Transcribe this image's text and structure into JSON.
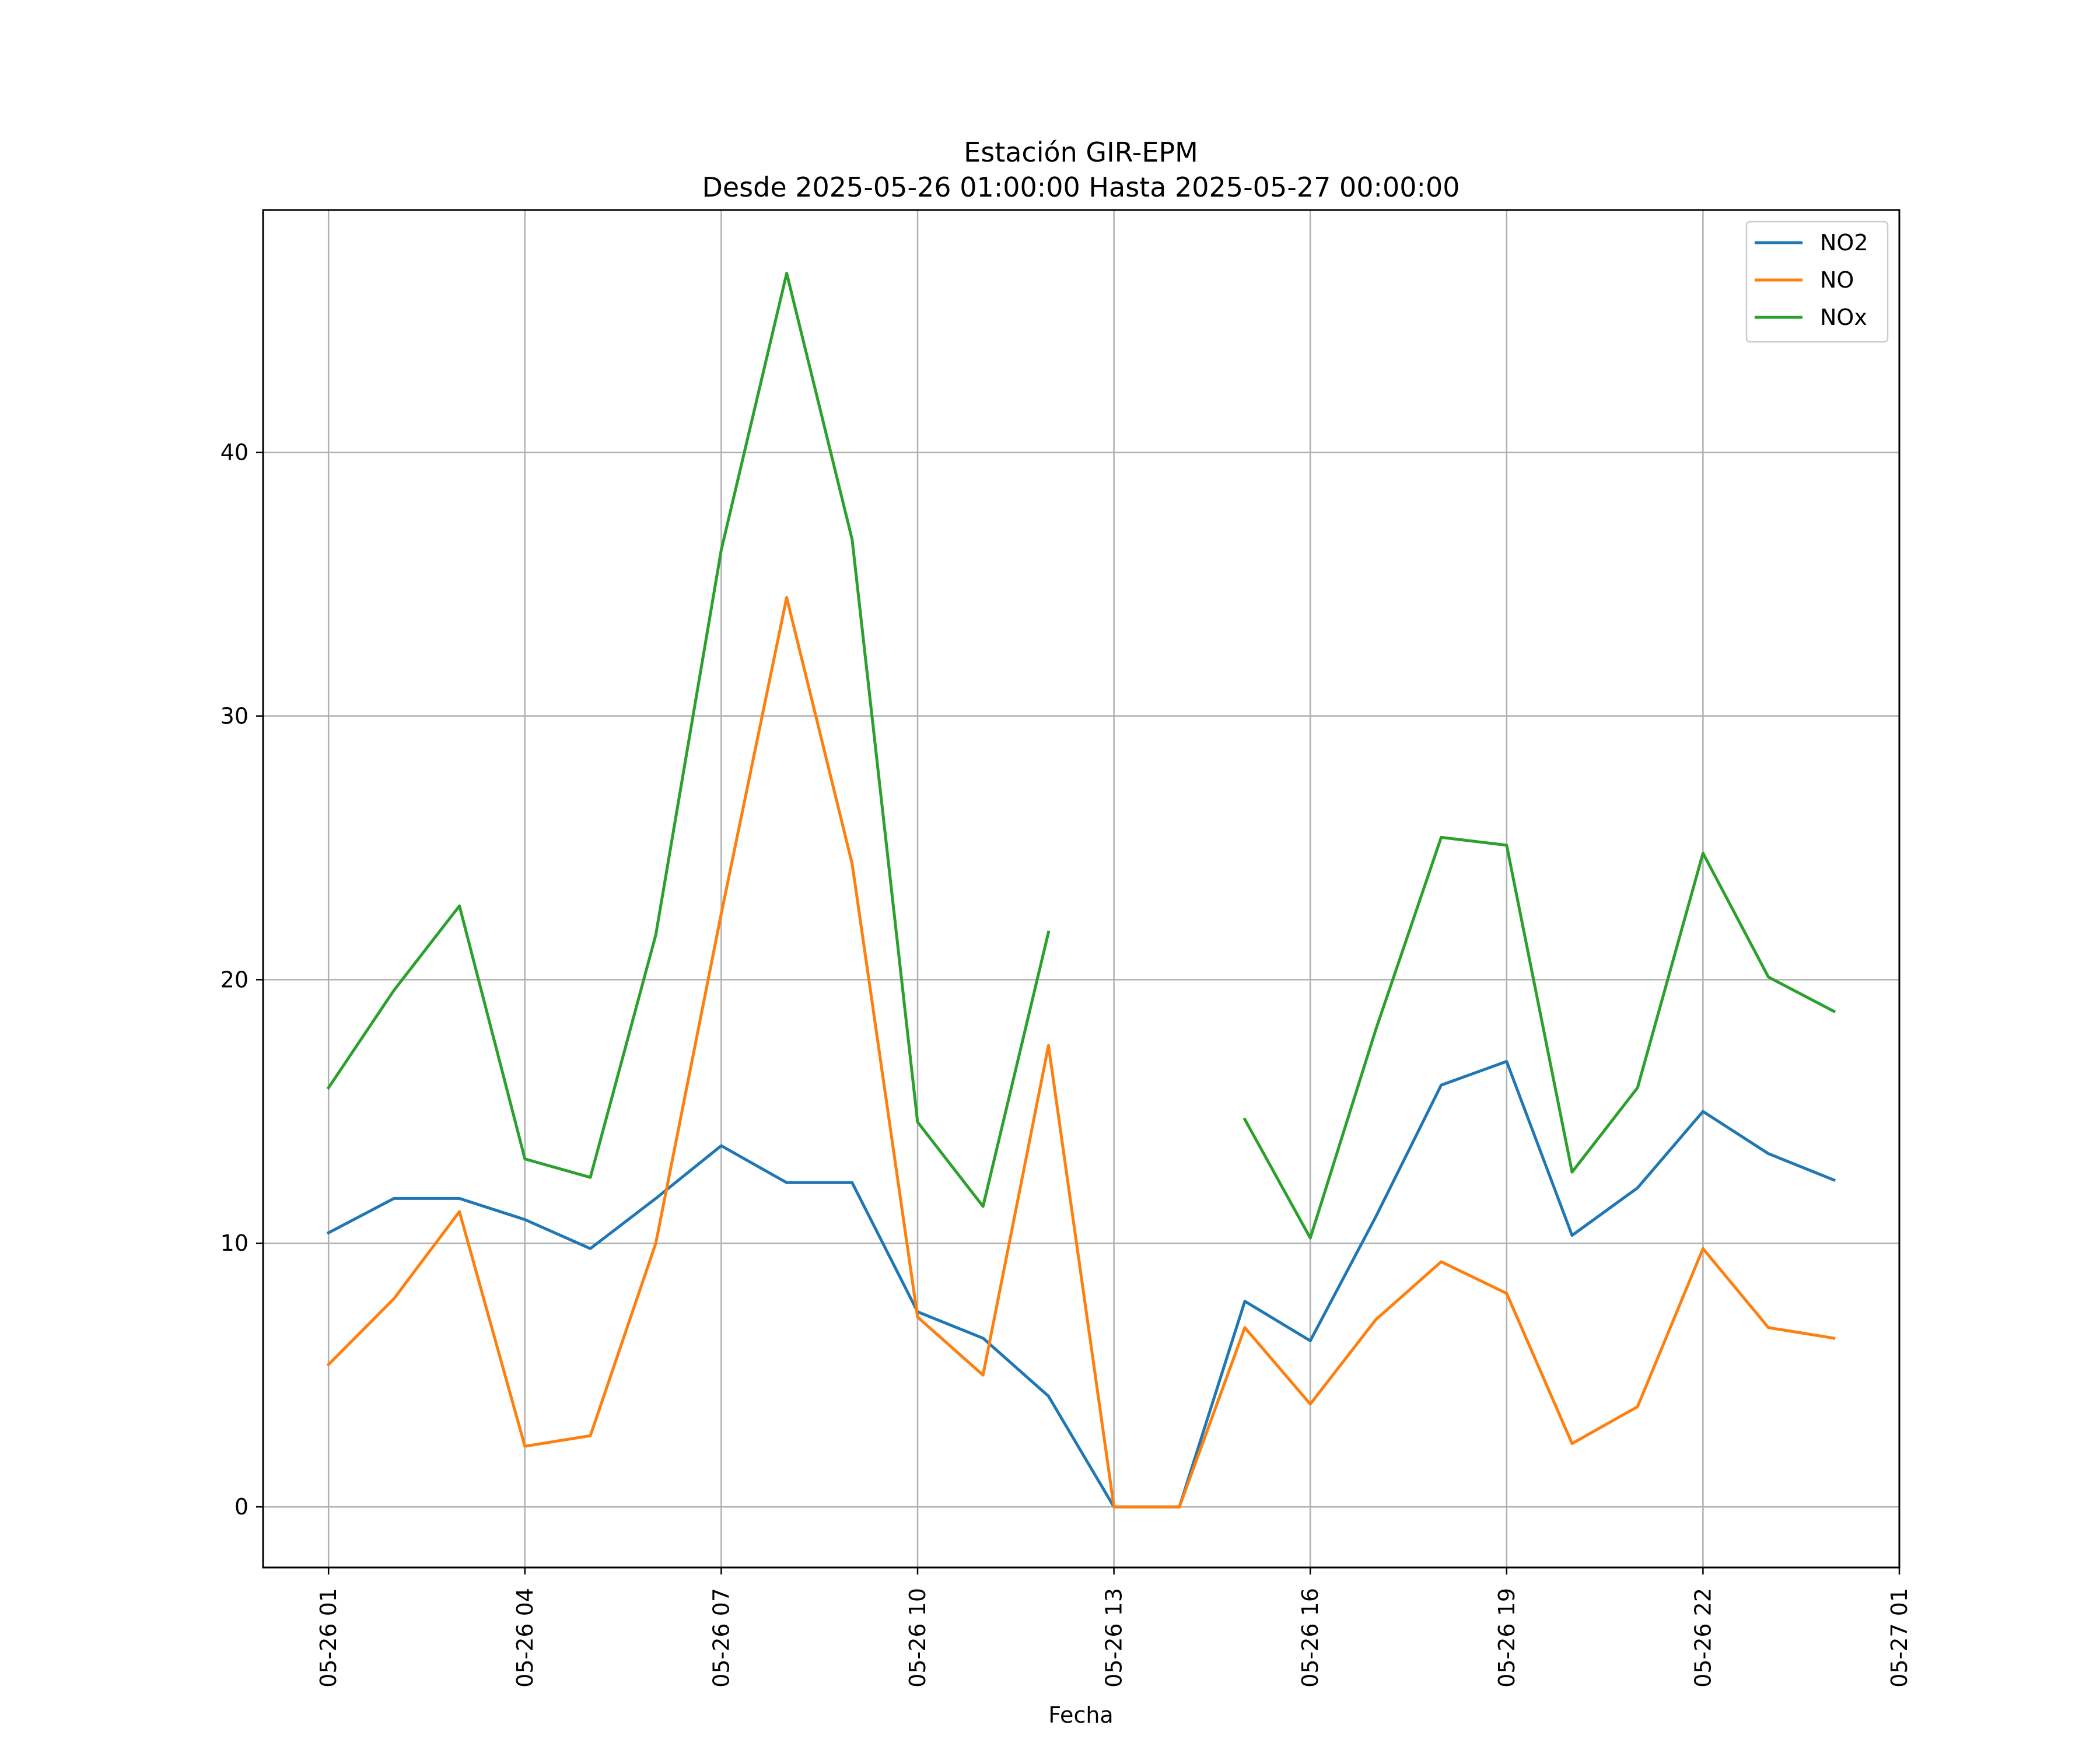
{
  "chart_data": {
    "type": "line",
    "title": "Estación GIR-EPM",
    "subtitle": "Desde 2025-05-26 01:00:00 Hasta 2025-05-27 00:00:00",
    "xlabel": "Fecha",
    "ylabel": "",
    "x": [
      "05-26 01",
      "05-26 02",
      "05-26 03",
      "05-26 04",
      "05-26 05",
      "05-26 06",
      "05-26 07",
      "05-26 08",
      "05-26 09",
      "05-26 10",
      "05-26 11",
      "05-26 12",
      "05-26 13",
      "05-26 14",
      "05-26 15",
      "05-26 16",
      "05-26 17",
      "05-26 18",
      "05-26 19",
      "05-26 20",
      "05-26 21",
      "05-26 22",
      "05-26 23",
      "05-27 00"
    ],
    "x_ticks": [
      "05-26 01",
      "05-26 04",
      "05-26 07",
      "05-26 10",
      "05-26 13",
      "05-26 16",
      "05-26 19",
      "05-26 22",
      "05-27 01"
    ],
    "xlim": [
      "05-26 00",
      "05-27 01"
    ],
    "y_ticks": [
      0,
      10,
      20,
      30,
      40
    ],
    "ylim": [
      -2.3,
      49.2
    ],
    "grid": true,
    "legend_position": "top-right",
    "series": [
      {
        "name": "NO2",
        "color": "#1f77b4",
        "values": [
          10.4,
          11.7,
          11.7,
          10.9,
          9.8,
          11.7,
          13.7,
          12.3,
          12.3,
          7.4,
          6.4,
          4.2,
          0.0,
          0.0,
          7.8,
          6.3,
          11.0,
          16.0,
          16.9,
          10.3,
          12.1,
          15.0,
          13.4,
          12.4
        ]
      },
      {
        "name": "NO",
        "color": "#ff7f0e",
        "values": [
          5.4,
          7.9,
          11.2,
          2.3,
          2.7,
          10.0,
          22.5,
          34.5,
          24.4,
          7.2,
          5.0,
          17.5,
          0.0,
          0.0,
          6.8,
          3.9,
          7.1,
          9.3,
          8.1,
          2.4,
          3.8,
          9.8,
          6.8,
          6.4
        ]
      },
      {
        "name": "NOx",
        "color": "#2ca02c",
        "values": [
          15.9,
          19.6,
          22.8,
          13.2,
          12.5,
          21.7,
          36.3,
          46.8,
          36.7,
          14.6,
          11.4,
          21.8,
          null,
          null,
          14.7,
          10.2,
          18.1,
          25.4,
          25.1,
          12.7,
          15.9,
          24.8,
          20.1,
          18.8
        ]
      }
    ]
  }
}
